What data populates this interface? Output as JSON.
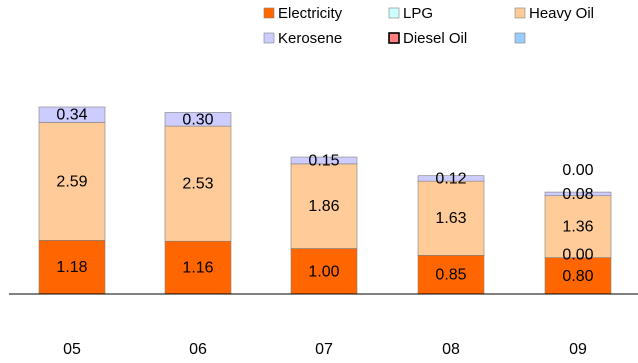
{
  "chart_data": {
    "type": "bar",
    "stacked": true,
    "categories": [
      "05",
      "06",
      "07",
      "08",
      "09"
    ],
    "series": [
      {
        "name": "Electricity",
        "color": "#FF6600",
        "values": [
          1.18,
          1.16,
          1.0,
          0.85,
          0.8
        ],
        "labels": [
          "1.18",
          "1.16",
          "1.00",
          "0.85",
          "0.80"
        ]
      },
      {
        "name": "Diesel Oil",
        "color": "#FF8080",
        "values": [
          0,
          0,
          0,
          0,
          0.0
        ],
        "labels": [
          "",
          "",
          "",
          "",
          "0.00"
        ]
      },
      {
        "name": "Heavy Oil",
        "color": "#FFCC99",
        "values": [
          2.59,
          2.53,
          1.86,
          1.63,
          1.36
        ],
        "labels": [
          "2.59",
          "2.53",
          "1.86",
          "1.63",
          "1.36"
        ]
      },
      {
        "name": "Kerosene",
        "color": "#CCCCFF",
        "values": [
          0.34,
          0.3,
          0.15,
          0.12,
          0.08
        ],
        "labels": [
          "0.34",
          "0.30",
          "0.15",
          "0.12",
          "0.08"
        ]
      },
      {
        "name": "LPG",
        "color": "#CCFFFF",
        "values": [
          0,
          0,
          0,
          0,
          0.0
        ],
        "labels": [
          "",
          "",
          "",
          "",
          "0.00"
        ]
      },
      {
        "name": "",
        "color": "#99CCFF",
        "values": [
          0,
          0,
          0,
          0,
          0
        ],
        "labels": [
          "",
          "",
          "",
          "",
          ""
        ]
      }
    ],
    "legend": {
      "placement": "top-right",
      "rows": [
        [
          "Electricity",
          "LPG",
          "Heavy Oil"
        ],
        [
          "Kerosene",
          "Diesel Oil",
          ""
        ]
      ]
    },
    "ylim": [
      0,
      4.4
    ],
    "grid": false
  }
}
